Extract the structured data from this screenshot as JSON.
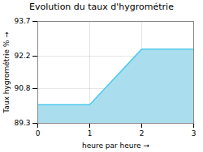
{
  "chart_data": {
    "type": "area",
    "title": "Evolution du taux d'hygrométrie",
    "xlabel": "heure par heure",
    "ylabel": "Taux hygrométrie %",
    "x": [
      0,
      1,
      2,
      3
    ],
    "values": [
      90.1,
      90.1,
      92.5,
      92.5
    ],
    "xlim": [
      0,
      3
    ],
    "ylim": [
      89.3,
      93.7
    ],
    "xticks": [
      0,
      1,
      2,
      3
    ],
    "yticks": [
      89.3,
      90.8,
      92.2,
      93.7
    ],
    "colors": [
      "#aadeee",
      "#55ccee"
    ],
    "grid": true
  }
}
